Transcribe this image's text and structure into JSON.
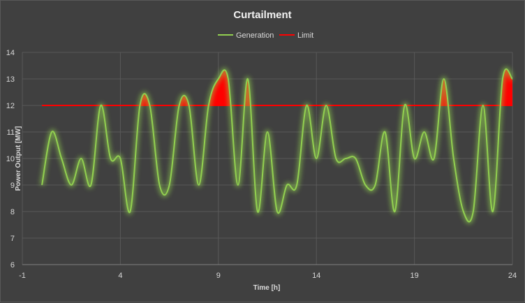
{
  "chart_data": {
    "type": "line",
    "title": "Curtailment",
    "xlabel": "Time [h]",
    "ylabel": "Power Output  [MW]",
    "xlim": [
      -1,
      24
    ],
    "ylim": [
      6,
      14
    ],
    "x_ticks": [
      -1,
      4,
      9,
      14,
      19,
      24
    ],
    "y_ticks": [
      6,
      7,
      8,
      9,
      10,
      11,
      12,
      13,
      14
    ],
    "grid": true,
    "legend_position": "top",
    "series": [
      {
        "name": "Generation",
        "color": "#92d050",
        "x": [
          0,
          0.5,
          1,
          1.5,
          2,
          2.5,
          3,
          3.5,
          4,
          4.5,
          5,
          5.5,
          6,
          6.5,
          7,
          7.5,
          8,
          8.5,
          9,
          9.5,
          10,
          10.5,
          11,
          11.5,
          12,
          12.5,
          13,
          13.5,
          14,
          14.5,
          15,
          15.5,
          16,
          16.5,
          17,
          17.5,
          18,
          18.5,
          19,
          19.5,
          20,
          20.5,
          21,
          21.5,
          22,
          22.5,
          23,
          23.5,
          24
        ],
        "y": [
          9,
          11,
          10,
          9,
          10,
          9,
          12,
          10,
          10,
          8,
          12,
          12,
          9,
          9,
          12,
          12,
          9,
          12,
          13,
          13,
          9,
          13,
          8,
          11,
          8,
          9,
          9,
          12,
          10,
          12,
          10,
          10,
          10,
          9,
          9,
          11,
          8,
          12,
          10,
          11,
          10,
          13,
          10,
          8,
          8,
          12,
          8,
          13,
          13
        ]
      },
      {
        "name": "Limit",
        "color": "#ff0000",
        "x": [
          0,
          24
        ],
        "y": [
          12,
          12
        ]
      }
    ],
    "shaded_excess_color": "#ff0000"
  }
}
